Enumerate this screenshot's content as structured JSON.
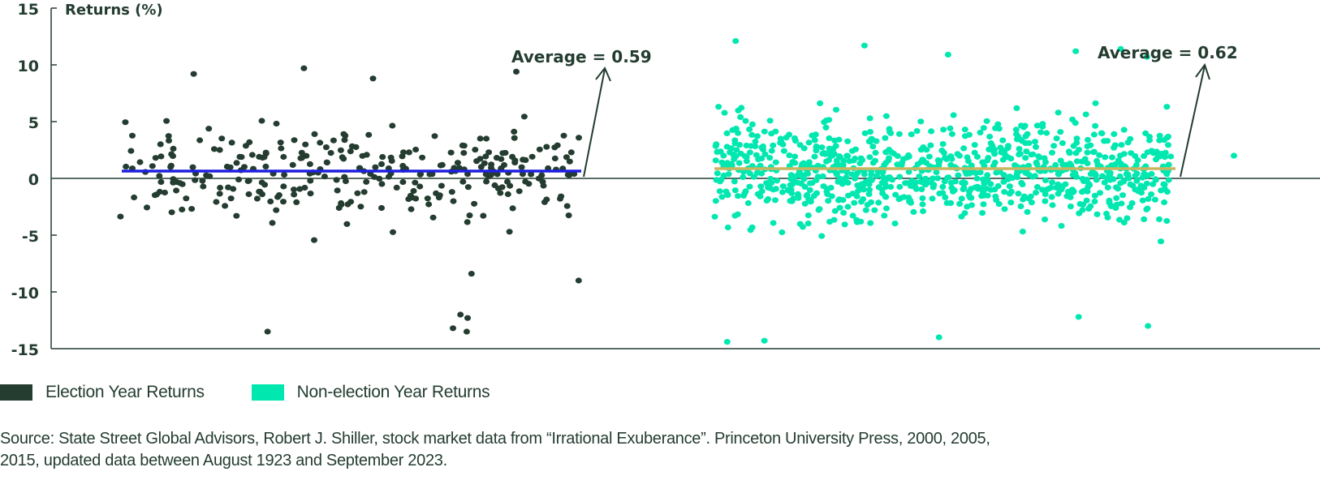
{
  "chart_data": {
    "type": "scatter",
    "title": "",
    "ylabel": "Returns (%)",
    "xlabel": "",
    "ylim": [
      -15,
      15
    ],
    "yticks": [
      15,
      10,
      5,
      0,
      -5,
      -10,
      -15
    ],
    "grid": false,
    "legend_position": "bottom-left",
    "series": [
      {
        "name": "Election Year Returns",
        "color": "#243d30",
        "count_approx": 300,
        "average": 0.59,
        "average_line_color": "#1f1fe0",
        "annotation": "Average = 0.59",
        "range_approx": [
          -13.5,
          9.7
        ],
        "notable_points": [
          9.7,
          9.4,
          9.2,
          8.8,
          -8.4,
          -9.0,
          -12.0,
          -12.3,
          -13.2,
          -13.5,
          -13.5
        ]
      },
      {
        "name": "Non-election Year Returns",
        "color": "#00e8b0",
        "count_approx": 900,
        "average": 0.62,
        "average_line_color": "#c8b560",
        "annotation": "Average = 0.62",
        "range_approx": [
          -14.4,
          12.1
        ],
        "notable_points": [
          12.1,
          11.7,
          11.4,
          11.2,
          10.9,
          10.7,
          -12.2,
          -13.0,
          -14.0,
          -14.3,
          -14.4
        ]
      }
    ]
  },
  "axis": {
    "title": "Returns (%)",
    "ticks": [
      "15",
      "10",
      "5",
      "0",
      "-5",
      "-10",
      "-15"
    ]
  },
  "annotations": {
    "election_avg": "Average = 0.59",
    "non_election_avg": "Average = 0.62"
  },
  "legend": {
    "items": [
      {
        "label": "Election Year Returns",
        "color": "#243d30"
      },
      {
        "label": "Non-election Year Returns",
        "color": "#00e8b0"
      }
    ]
  },
  "source": {
    "line1": "Source: State Street Global Advisors, Robert J. Shiller, stock market data from “Irrational Exuberance”. Princeton University Press, 2000, 2005,",
    "line2": "2015, updated data between August 1923 and September 2023."
  }
}
